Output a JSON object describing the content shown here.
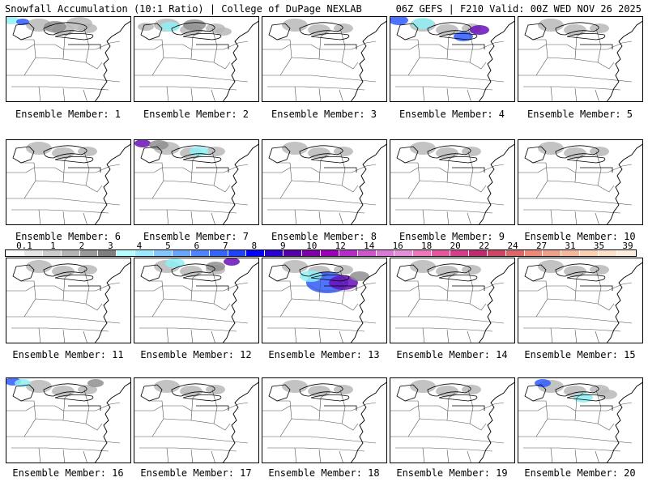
{
  "header": {
    "left": "Snowfall Accumulation (10:1 Ratio) | College of DuPage NEXLAB",
    "right": "06Z GEFS | F210 Valid: 00Z WED NOV 26 2025"
  },
  "caption_prefix": "Ensemble Member: ",
  "members": [
    1,
    2,
    3,
    4,
    5,
    6,
    7,
    8,
    9,
    10,
    11,
    12,
    13,
    14,
    15,
    16,
    17,
    18,
    19,
    20
  ],
  "legend": {
    "labels": [
      "0.1",
      "1",
      "2",
      "3",
      "4",
      "5",
      "6",
      "7",
      "8",
      "9",
      "10",
      "12",
      "14",
      "16",
      "18",
      "20",
      "22",
      "24",
      "27",
      "31",
      "35",
      "39"
    ],
    "colors": [
      "#ffffff",
      "#e6e6e6",
      "#cccccc",
      "#b3b3b3",
      "#999999",
      "#7f7f7f",
      "#b3ffff",
      "#99ebff",
      "#80c8ff",
      "#66a6ff",
      "#4d84ff",
      "#3366ff",
      "#1a44ff",
      "#0000ff",
      "#2a00d4",
      "#5500aa",
      "#7f00aa",
      "#9a00b8",
      "#b52ac8",
      "#cc55cc",
      "#dd77d8",
      "#e68fd8",
      "#ee77bb",
      "#e6559f",
      "#d63c8a",
      "#c02a70",
      "#cc4466",
      "#dd6666",
      "#ee8877",
      "#f0a088",
      "#f6b89a",
      "#fad0b0",
      "#fce0c8",
      "#fdeede"
    ]
  },
  "map_colors": {
    "snow_light": "#b8b8b8",
    "snow_mid": "#8f8f8f",
    "cyan": "#8ff0f5",
    "blue": "#2f5cff",
    "purple": "#6a0fb8"
  }
}
